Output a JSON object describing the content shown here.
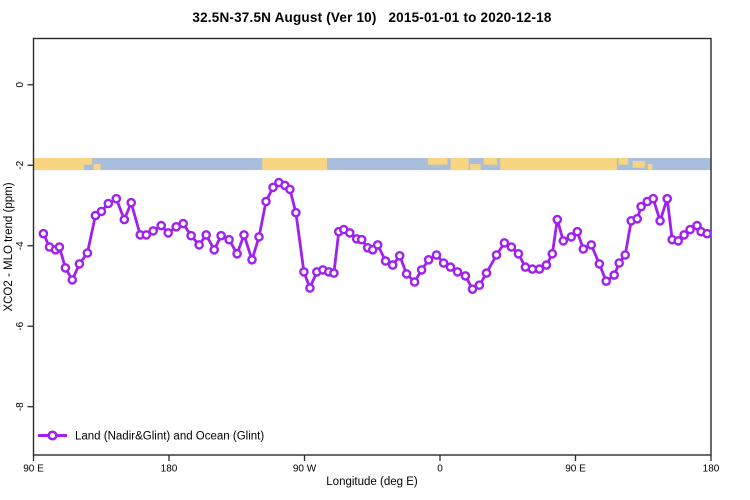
{
  "window": {
    "background": "#ffffff"
  },
  "chart_data": {
    "type": "line",
    "title": "32.5N-37.5N August (Ver 10)   2015-01-01 to 2020-12-18",
    "xlabel": "Longitude (deg E)",
    "ylabel": "XCO2 - MLO trend (ppm)",
    "xlim": [
      90,
      540
    ],
    "ylim": [
      -9.2,
      1.15
    ],
    "grid": false,
    "legend": {
      "position": "bottom-left",
      "label": "Land (Nadir&Glint) and Ocean (Glint)"
    },
    "x_ticks": [
      {
        "value": 90,
        "label": "90 E"
      },
      {
        "value": 180,
        "label": "180"
      },
      {
        "value": 270,
        "label": "90 W"
      },
      {
        "value": 360,
        "label": "0"
      },
      {
        "value": 450,
        "label": "90 E"
      },
      {
        "value": 540,
        "label": "180"
      }
    ],
    "y_ticks": [
      {
        "value": 0,
        "label": "0"
      },
      {
        "value": -2,
        "label": "-2"
      },
      {
        "value": -4,
        "label": "-4"
      },
      {
        "value": -6,
        "label": "-6"
      },
      {
        "value": -8,
        "label": "-8"
      }
    ],
    "series": [
      {
        "name": "Land (Nadir&Glint) and Ocean (Glint)",
        "color": "#A020F0",
        "marker": "open-circle",
        "x": [
          96.6,
          100.6,
          104.6,
          107.2,
          111.2,
          115.8,
          120.5,
          125.8,
          131.1,
          135.1,
          139.7,
          145,
          150.3,
          154.9,
          160.9,
          164.9,
          169.5,
          174.8,
          179.5,
          184.8,
          189.4,
          194.7,
          200,
          204.7,
          210,
          214.6,
          219.9,
          225.2,
          229.8,
          235.1,
          239.8,
          244.4,
          249.1,
          253,
          257,
          260.3,
          264.3,
          269.6,
          273.6,
          278.2,
          282.2,
          286.1,
          289.5,
          292.8,
          296.1,
          300.1,
          304.7,
          308,
          312,
          315.3,
          318.6,
          323.9,
          328.6,
          333.2,
          337.8,
          343.1,
          347.8,
          352.4,
          357.7,
          362.4,
          367,
          371.6,
          376.9,
          381.6,
          386.2,
          390.9,
          397.5,
          402.8,
          407.4,
          412.1,
          416.7,
          421.4,
          426,
          430.7,
          434.6,
          437.9,
          441.9,
          447.2,
          451.2,
          455.2,
          460.5,
          465.8,
          470.4,
          475.7,
          479,
          483,
          487,
          491,
          493.6,
          497.6,
          501.6,
          506.2,
          510.9,
          514.2,
          518.2,
          522.1,
          526.1,
          530.7,
          533.4,
          537.4
        ],
        "y": [
          -3.7,
          -4.03,
          -4.1,
          -4.03,
          -4.55,
          -4.85,
          -4.45,
          -4.18,
          -3.25,
          -3.15,
          -2.95,
          -2.83,
          -3.35,
          -2.93,
          -3.73,
          -3.73,
          -3.63,
          -3.5,
          -3.68,
          -3.53,
          -3.45,
          -3.75,
          -3.98,
          -3.73,
          -4.1,
          -3.75,
          -3.85,
          -4.2,
          -3.73,
          -4.35,
          -3.78,
          -2.9,
          -2.55,
          -2.43,
          -2.5,
          -2.6,
          -3.18,
          -4.65,
          -5.05,
          -4.65,
          -4.6,
          -4.65,
          -4.68,
          -3.65,
          -3.6,
          -3.68,
          -3.83,
          -3.85,
          -4.05,
          -4.1,
          -3.98,
          -4.38,
          -4.48,
          -4.25,
          -4.7,
          -4.9,
          -4.6,
          -4.35,
          -4.23,
          -4.43,
          -4.53,
          -4.65,
          -4.75,
          -5.08,
          -4.98,
          -4.68,
          -4.23,
          -3.93,
          -4.03,
          -4.2,
          -4.53,
          -4.58,
          -4.58,
          -4.48,
          -4.2,
          -3.35,
          -3.88,
          -3.78,
          -3.65,
          -4.08,
          -3.98,
          -4.45,
          -4.88,
          -4.73,
          -4.43,
          -4.23,
          -3.38,
          -3.33,
          -3.03,
          -2.9,
          -2.83,
          -3.38,
          -2.83,
          -3.85,
          -3.88,
          -3.73,
          -3.6,
          -3.5,
          -3.65,
          -3.7
        ]
      }
    ],
    "map_band": {
      "y_center": -1.97,
      "y_range": [
        -1.82,
        -2.12
      ],
      "ocean_color": "#A9BEDC",
      "land_color": "#FAD581",
      "land_segments": [
        {
          "from": 90,
          "to": 123.5,
          "part": "full"
        },
        {
          "from": 123.5,
          "to": 129,
          "part": "top"
        },
        {
          "from": 130,
          "to": 134.5,
          "part": "bottom"
        },
        {
          "from": 242,
          "to": 285,
          "part": "full"
        },
        {
          "from": 352,
          "to": 365,
          "part": "top"
        },
        {
          "from": 367,
          "to": 379,
          "part": "full"
        },
        {
          "from": 380,
          "to": 387,
          "part": "bottom"
        },
        {
          "from": 389,
          "to": 398,
          "part": "top"
        },
        {
          "from": 400,
          "to": 477.5,
          "part": "full"
        },
        {
          "from": 478.5,
          "to": 485,
          "part": "top"
        },
        {
          "from": 488,
          "to": 496,
          "part": "mid"
        },
        {
          "from": 498,
          "to": 501,
          "part": "bottom"
        }
      ]
    }
  },
  "colors": {
    "line": "#A020F0",
    "marker_fill": "#ffffff",
    "land": "#FAD581",
    "ocean": "#A9BEDC",
    "axis": "#2b2b2b",
    "text": "#000000"
  }
}
